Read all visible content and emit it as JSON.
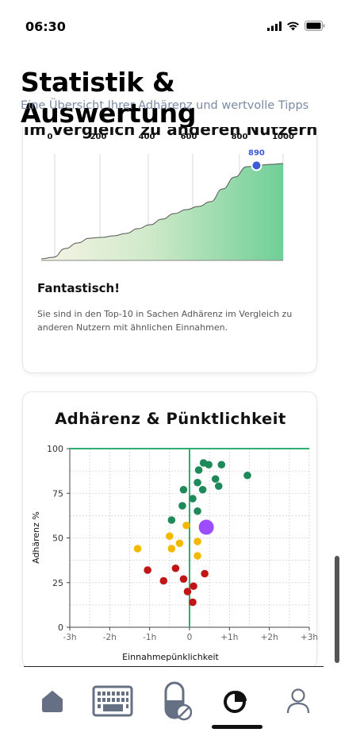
{
  "status_bar": {
    "time": "06:30"
  },
  "header": {
    "title": "Statistik & Auswertung",
    "subtitle": "Eine Übersicht Ihrer Adhärenz und wertvolle Tipps"
  },
  "comparison_card": {
    "title": "Im Vergleich zu anderen Nutzern",
    "headline": "Fantastisch!",
    "description": "Sie sind in den Top-10 in Sachen Adhärenz im Vergleich zu anderen Nutzern mit ähnlichen Einnahmen."
  },
  "scatter_card": {
    "title": "Adhärenz & Pünktlichkeit"
  },
  "tabs": [
    {
      "name": "home",
      "icon": "home-icon",
      "active": false
    },
    {
      "name": "medication-plan",
      "icon": "calendar-icon",
      "active": false
    },
    {
      "name": "medication",
      "icon": "pill-icon",
      "active": false
    },
    {
      "name": "statistics",
      "icon": "pie-chart-icon",
      "active": true
    },
    {
      "name": "profile",
      "icon": "person-icon",
      "active": false
    }
  ],
  "chart_data": [
    {
      "type": "area",
      "title": "Im Vergleich zu anderen Nutzern",
      "x_ticks": [
        "0",
        "200",
        "400",
        "600",
        "800",
        "1000"
      ],
      "x_range": [
        0,
        1000
      ],
      "x": [
        0,
        50,
        100,
        150,
        200,
        250,
        300,
        350,
        400,
        450,
        500,
        550,
        600,
        650,
        700,
        750,
        800,
        850,
        900,
        950,
        1000
      ],
      "values": [
        2,
        4,
        15,
        22,
        28,
        29,
        31,
        34,
        40,
        45,
        52,
        59,
        64,
        68,
        74,
        90,
        105,
        118,
        120,
        121,
        122
      ],
      "marker": {
        "x": 890,
        "label": "890"
      },
      "grid": "vertical",
      "colors": {
        "fill_start": "#f6f5e6",
        "fill_end": "#6fcf97",
        "marker": "#3b5bdb"
      }
    },
    {
      "type": "scatter",
      "title": "Adhärenz & Pünktlichkeit",
      "xlabel": "Einnahmepünklichkeit",
      "ylabel": "Adhärenz %",
      "x_range": [
        -3,
        3
      ],
      "y_range": [
        0,
        100
      ],
      "x_ticks": [
        "-3h",
        "-2h",
        "-1h",
        "0",
        "+1h",
        "+2h",
        "+3h"
      ],
      "y_ticks": [
        "0",
        "25",
        "50",
        "75",
        "100"
      ],
      "grid": "dashed",
      "reference_lines": {
        "x": 0,
        "y": 100,
        "color": "#2eae6f"
      },
      "highlight": {
        "x": 0.42,
        "y": 56,
        "color": "#9b4dff"
      },
      "series": [
        {
          "color": "#1e8a5a",
          "points": [
            [
              0.35,
              92
            ],
            [
              0.48,
              91
            ],
            [
              0.8,
              91
            ],
            [
              0.23,
              88
            ],
            [
              0.65,
              83
            ],
            [
              1.45,
              85
            ],
            [
              0.2,
              81
            ],
            [
              0.73,
              79
            ],
            [
              -0.15,
              77
            ],
            [
              0.33,
              77
            ],
            [
              0.08,
              72
            ],
            [
              -0.18,
              68
            ],
            [
              0.2,
              65
            ],
            [
              -0.45,
              60
            ]
          ]
        },
        {
          "color": "#f5b800",
          "points": [
            [
              -0.08,
              57
            ],
            [
              -0.5,
              51
            ],
            [
              0.2,
              48
            ],
            [
              -0.25,
              47
            ],
            [
              -1.3,
              44
            ],
            [
              -0.45,
              44
            ],
            [
              0.2,
              40
            ]
          ]
        },
        {
          "color": "#c01616",
          "points": [
            [
              -1.05,
              32
            ],
            [
              -0.35,
              33
            ],
            [
              0.38,
              30
            ],
            [
              -0.65,
              26
            ],
            [
              -0.15,
              27
            ],
            [
              0.1,
              23
            ],
            [
              -0.05,
              20
            ],
            [
              0.08,
              14
            ]
          ]
        }
      ]
    }
  ]
}
